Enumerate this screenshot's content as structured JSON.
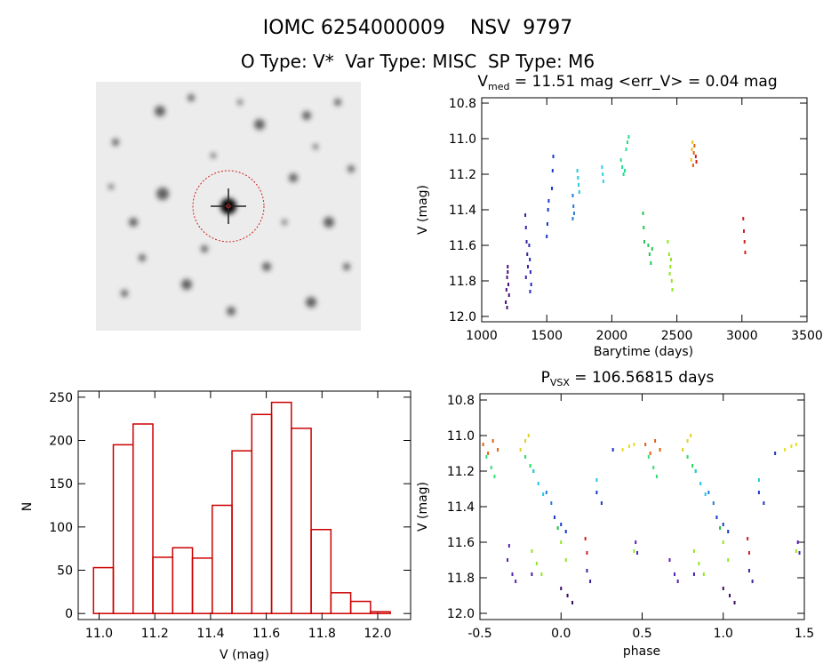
{
  "title": "IOMC 6254000009    NSV  9797",
  "subtitle": "O Type: V*  Var Type: MISC  SP Type: M6",
  "chart_data": [
    {
      "type": "scatter",
      "title": "V",
      "title_sub": "med",
      "title_tail": " = 11.51 mag <err_V> = 0.04 mag",
      "x_label": "Barytime (days)",
      "y_label": "V (mag)",
      "xlim": [
        1000,
        3500
      ],
      "xticks": [
        1000,
        1500,
        2000,
        2500,
        3000,
        3500
      ],
      "ylim": [
        12.03,
        10.77
      ],
      "yticks": [
        10.8,
        {
          "value": 11,
          "label": "11.0"
        },
        11.2,
        11.4,
        11.6,
        11.8,
        {
          "value": 12,
          "label": "12.0"
        }
      ],
      "series": [
        {
          "color": "#4b0f7a",
          "x": [
            1185,
            1190,
            1195,
            1200,
            1205,
            1210,
            1195,
            1200
          ],
          "y": [
            11.92,
            11.85,
            11.78,
            11.72,
            11.82,
            11.88,
            11.95,
            11.75
          ]
        },
        {
          "color": "#4020a0",
          "x": [
            1335,
            1340,
            1345,
            1350,
            1355,
            1340
          ],
          "y": [
            11.43,
            11.5,
            11.58,
            11.65,
            11.72,
            11.78
          ]
        },
        {
          "color": "#2828b8",
          "x": [
            1365,
            1370,
            1375,
            1380,
            1372
          ],
          "y": [
            11.6,
            11.68,
            11.75,
            11.82,
            11.86
          ]
        },
        {
          "color": "#1838c8",
          "x": [
            1500,
            1505,
            1510,
            1540,
            1545,
            1550,
            1515
          ],
          "y": [
            11.55,
            11.48,
            11.4,
            11.28,
            11.18,
            11.1,
            11.35
          ]
        },
        {
          "color": "#2a7ad8",
          "x": [
            1700,
            1705,
            1710,
            1700
          ],
          "y": [
            11.32,
            11.38,
            11.42,
            11.45
          ]
        },
        {
          "color": "#20c8e0",
          "x": [
            1735,
            1740,
            1745,
            1750
          ],
          "y": [
            11.18,
            11.22,
            11.26,
            11.3
          ]
        },
        {
          "color": "#30d0e0",
          "x": [
            1925,
            1930,
            1935
          ],
          "y": [
            11.16,
            11.2,
            11.24
          ]
        },
        {
          "color": "#20e090",
          "x": [
            2070,
            2080,
            2090,
            2110,
            2120,
            2130,
            2100
          ],
          "y": [
            11.12,
            11.16,
            11.2,
            11.06,
            11.02,
            10.99,
            11.18
          ]
        },
        {
          "color": "#20c850",
          "x": [
            2240,
            2245,
            2250,
            2280,
            2290,
            2300,
            2310
          ],
          "y": [
            11.42,
            11.5,
            11.58,
            11.6,
            11.65,
            11.7,
            11.62
          ]
        },
        {
          "color": "#90e820",
          "x": [
            2430,
            2440,
            2450,
            2460,
            2465,
            2455,
            2445
          ],
          "y": [
            11.58,
            11.65,
            11.72,
            11.8,
            11.85,
            11.68,
            11.76
          ]
        },
        {
          "color": "#f0c020",
          "x": [
            2610,
            2615,
            2620
          ],
          "y": [
            11.12,
            11.06,
            11.02
          ]
        },
        {
          "color": "#e06010",
          "x": [
            2625,
            2630,
            2635
          ],
          "y": [
            11.15,
            11.08,
            11.04
          ]
        },
        {
          "color": "#d02020",
          "x": [
            2645,
            2650,
            3010,
            3015,
            3020,
            3025
          ],
          "y": [
            11.1,
            11.13,
            11.45,
            11.52,
            11.58,
            11.64
          ]
        }
      ]
    },
    {
      "type": "histogram",
      "x_label": "V (mag)",
      "y_label": "N",
      "color": "#cc0000",
      "xlim": [
        10.925,
        12.118
      ],
      "xticks": [
        {
          "value": 11,
          "label": "11.0"
        },
        11.2,
        11.4,
        11.6,
        11.8,
        {
          "value": 12,
          "label": "12.0"
        }
      ],
      "ylim": [
        -7,
        257
      ],
      "yticks": [
        0,
        50,
        100,
        150,
        200,
        250
      ],
      "bins": [
        10.98,
        11.051,
        11.122,
        11.193,
        11.264,
        11.335,
        11.406,
        11.477,
        11.548,
        11.619,
        11.69,
        11.761,
        11.832,
        11.903,
        11.974,
        12.045
      ],
      "values": [
        53,
        195,
        219,
        65,
        76,
        64,
        125,
        188,
        230,
        244,
        214,
        97,
        24,
        14,
        2
      ]
    },
    {
      "type": "scatter",
      "title": "P",
      "title_sub": "VSX",
      "title_tail": " = 106.56815 days",
      "x_label": "phase",
      "y_label": "V (mag)",
      "xlim": [
        -0.5,
        1.5
      ],
      "xticks": [
        -0.5,
        {
          "value": 0,
          "label": "0.0"
        },
        0.5,
        {
          "value": 1,
          "label": "1.0"
        },
        1.5
      ],
      "ylim": [
        12.035,
        10.765
      ],
      "yticks": [
        10.8,
        {
          "value": 11,
          "label": "11.0"
        },
        11.2,
        11.4,
        11.6,
        11.8,
        {
          "value": 12,
          "label": "12.0"
        }
      ],
      "series": [
        {
          "color": "#e06010",
          "x": [
            -0.48,
            -0.45,
            -0.42,
            -0.39,
            0.52,
            0.55,
            0.58,
            0.61
          ],
          "y": [
            11.05,
            11.1,
            11.03,
            11.08,
            11.05,
            11.1,
            11.03,
            11.08
          ]
        },
        {
          "color": "#30e070",
          "x": [
            -0.46,
            -0.43,
            -0.41,
            0.54,
            0.57,
            0.59
          ],
          "y": [
            11.12,
            11.18,
            11.23,
            11.12,
            11.18,
            11.23
          ]
        },
        {
          "color": "#e0d020",
          "x": [
            -0.25,
            -0.22,
            -0.2,
            0.75,
            0.78,
            0.8
          ],
          "y": [
            11.08,
            11.03,
            11.0,
            11.08,
            11.03,
            11.0
          ]
        },
        {
          "color": "#20e060",
          "x": [
            -0.22,
            -0.19,
            -0.17,
            0.78,
            0.81,
            0.83
          ],
          "y": [
            11.12,
            11.17,
            11.2,
            11.12,
            11.17,
            11.2
          ]
        },
        {
          "color": "#20c8e0",
          "x": [
            -0.17,
            -0.14,
            -0.11,
            0.83,
            0.86,
            0.89,
            0.22,
            1.22
          ],
          "y": [
            11.2,
            11.27,
            11.33,
            11.2,
            11.27,
            11.33,
            11.25,
            11.25
          ]
        },
        {
          "color": "#2a7ad8",
          "x": [
            -0.09,
            -0.06,
            0.91,
            0.94
          ],
          "y": [
            11.32,
            11.38,
            11.32,
            11.38
          ]
        },
        {
          "color": "#1838c8",
          "x": [
            -0.04,
            0.0,
            0.03,
            0.96,
            1.0,
            1.03,
            0.22,
            0.25,
            1.22,
            1.25,
            0.32,
            1.32
          ],
          "y": [
            11.46,
            11.5,
            11.54,
            11.46,
            11.5,
            11.54,
            11.32,
            11.38,
            11.32,
            11.38,
            11.08,
            11.1
          ]
        },
        {
          "color": "#20c040",
          "x": [
            -0.02,
            0.98
          ],
          "y": [
            11.52,
            11.52
          ]
        },
        {
          "color": "#e8e020",
          "x": [
            0.38,
            0.42,
            0.45,
            1.38,
            1.42,
            1.45
          ],
          "y": [
            11.08,
            11.06,
            11.05,
            11.08,
            11.06,
            11.05
          ]
        },
        {
          "color": "#5a20b0",
          "x": [
            -0.33,
            -0.3,
            -0.28,
            0.67,
            0.7,
            0.72,
            0.46,
            0.47,
            1.46,
            1.47,
            -0.32
          ],
          "y": [
            11.7,
            11.78,
            11.82,
            11.7,
            11.78,
            11.82,
            11.6,
            11.66,
            11.6,
            11.66,
            11.62
          ]
        },
        {
          "color": "#90e820",
          "x": [
            -0.18,
            -0.15,
            -0.12,
            0.82,
            0.85,
            0.88,
            0.0,
            0.03,
            1.0,
            1.03,
            0.45,
            1.45
          ],
          "y": [
            11.65,
            11.72,
            11.78,
            11.65,
            11.72,
            11.78,
            11.6,
            11.7,
            11.6,
            11.7,
            11.65,
            11.65
          ]
        },
        {
          "color": "#d02020",
          "x": [
            0.15,
            0.16,
            1.15,
            1.16
          ],
          "y": [
            11.58,
            11.66,
            11.58,
            11.66
          ]
        },
        {
          "color": "#3a0a60",
          "x": [
            0.0,
            0.04,
            0.07,
            1.0,
            1.04,
            1.07
          ],
          "y": [
            11.86,
            11.9,
            11.94,
            11.86,
            11.9,
            11.94
          ]
        },
        {
          "color": "#4020a0",
          "x": [
            0.16,
            0.18,
            1.16,
            1.18,
            -0.18,
            0.82
          ],
          "y": [
            11.76,
            11.82,
            11.76,
            11.82,
            11.78,
            11.78
          ]
        }
      ]
    }
  ]
}
